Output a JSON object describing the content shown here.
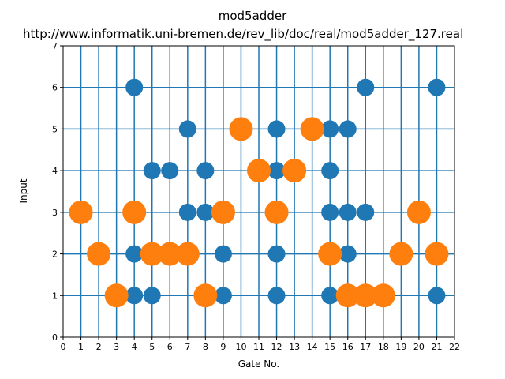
{
  "chart_data": {
    "type": "scatter",
    "title": "mod5adder",
    "subtitle": "http://www.informatik.uni-bremen.de/rev_lib/doc/real/mod5adder_127.real",
    "xlabel": "Gate No.",
    "ylabel": "Input",
    "xlim": [
      0,
      22
    ],
    "ylim": [
      0,
      7
    ],
    "xticks": [
      0,
      1,
      2,
      3,
      4,
      5,
      6,
      7,
      8,
      9,
      10,
      11,
      12,
      13,
      14,
      15,
      16,
      17,
      18,
      19,
      20,
      21,
      22
    ],
    "yticks": [
      0,
      1,
      2,
      3,
      4,
      5,
      6,
      7
    ],
    "grid": true,
    "colors": {
      "control": "#1f77b4",
      "target": "#ff7f0e"
    },
    "series": [
      {
        "role": "control",
        "points": [
          [
            4,
            6
          ],
          [
            4,
            2
          ],
          [
            4,
            1
          ],
          [
            5,
            4
          ],
          [
            5,
            1
          ],
          [
            6,
            4
          ],
          [
            7,
            5
          ],
          [
            7,
            3
          ],
          [
            8,
            4
          ],
          [
            8,
            3
          ],
          [
            9,
            2
          ],
          [
            9,
            1
          ],
          [
            12,
            5
          ],
          [
            12,
            4
          ],
          [
            12,
            2
          ],
          [
            12,
            1
          ],
          [
            15,
            5
          ],
          [
            15,
            4
          ],
          [
            15,
            3
          ],
          [
            15,
            1
          ],
          [
            16,
            5
          ],
          [
            16,
            3
          ],
          [
            16,
            2
          ],
          [
            17,
            6
          ],
          [
            17,
            3
          ],
          [
            21,
            6
          ],
          [
            21,
            1
          ]
        ]
      },
      {
        "role": "target",
        "points": [
          [
            1,
            3
          ],
          [
            2,
            2
          ],
          [
            3,
            1
          ],
          [
            4,
            3
          ],
          [
            5,
            2
          ],
          [
            6,
            2
          ],
          [
            7,
            2
          ],
          [
            8,
            1
          ],
          [
            9,
            3
          ],
          [
            10,
            5
          ],
          [
            11,
            4
          ],
          [
            12,
            3
          ],
          [
            13,
            4
          ],
          [
            14,
            5
          ],
          [
            15,
            2
          ],
          [
            16,
            1
          ],
          [
            17,
            1
          ],
          [
            18,
            1
          ],
          [
            19,
            2
          ],
          [
            20,
            3
          ],
          [
            21,
            2
          ]
        ]
      }
    ]
  }
}
